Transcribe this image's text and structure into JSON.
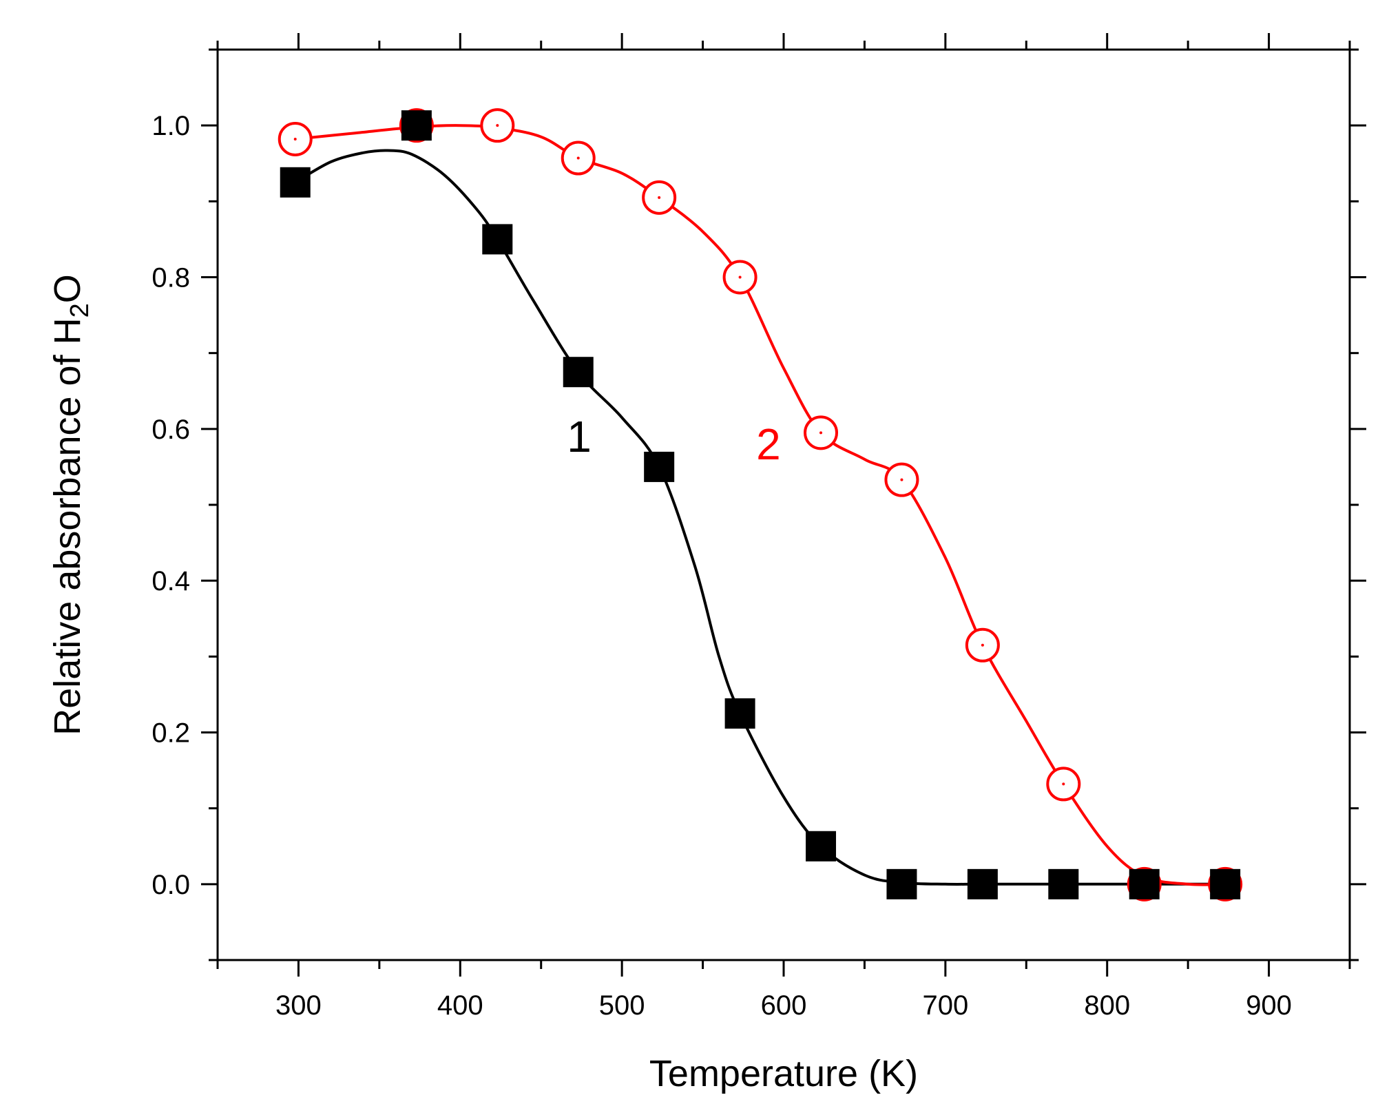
{
  "chart_data": {
    "type": "line",
    "title": "",
    "xlabel": "Temperature (K)",
    "ylabel_main": "Relative absorbance of H",
    "ylabel_sub": "2",
    "ylabel_tail": "O",
    "xlim": [
      250,
      950
    ],
    "ylim": [
      -0.1,
      1.1
    ],
    "xticks": [
      300,
      400,
      500,
      600,
      700,
      800,
      900
    ],
    "xtick_labels": [
      "300",
      "400",
      "500",
      "600",
      "700",
      "800",
      "900"
    ],
    "yticks": [
      0.0,
      0.2,
      0.4,
      0.6,
      0.8,
      1.0
    ],
    "ytick_labels": [
      "0.0",
      "0.2",
      "0.4",
      "0.6",
      "0.8",
      "1.0"
    ],
    "series": [
      {
        "name": "1",
        "color": "#000000",
        "marker": "filled-square",
        "label_pos": [
          466,
          0.57
        ],
        "x": [
          298,
          373,
          423,
          473,
          523,
          573,
          623,
          673,
          723,
          773,
          823,
          873
        ],
        "y": [
          0.925,
          1.0,
          0.85,
          0.675,
          0.55,
          0.225,
          0.05,
          0.0,
          0.0,
          0.0,
          0.0,
          0.0
        ],
        "curve_x": [
          298,
          320,
          340,
          355,
          370,
          390,
          410,
          423,
          445,
          473,
          500,
          523,
          545,
          560,
          573,
          600,
          623,
          650,
          673,
          700,
          723,
          773,
          823,
          873
        ],
        "curve_y": [
          0.925,
          0.952,
          0.964,
          0.967,
          0.962,
          0.935,
          0.89,
          0.85,
          0.77,
          0.675,
          0.615,
          0.55,
          0.42,
          0.3,
          0.225,
          0.115,
          0.05,
          0.012,
          0.002,
          0.0,
          0.0,
          0.0,
          0.0,
          0.0
        ]
      },
      {
        "name": "2",
        "color": "#ff0000",
        "marker": "open-circle",
        "label_pos": [
          583,
          0.56
        ],
        "x": [
          298,
          373,
          423,
          473,
          523,
          573,
          623,
          673,
          723,
          773,
          823,
          873
        ],
        "y": [
          0.982,
          1.0,
          1.0,
          0.957,
          0.905,
          0.8,
          0.595,
          0.533,
          0.315,
          0.132,
          0.0,
          0.0
        ],
        "curve_x": [
          298,
          335,
          373,
          400,
          423,
          450,
          473,
          500,
          523,
          550,
          573,
          600,
          623,
          650,
          673,
          700,
          723,
          750,
          773,
          800,
          823,
          850,
          873
        ],
        "curve_y": [
          0.982,
          0.99,
          0.998,
          1.0,
          0.997,
          0.985,
          0.957,
          0.937,
          0.905,
          0.86,
          0.8,
          0.68,
          0.595,
          0.56,
          0.533,
          0.43,
          0.315,
          0.215,
          0.132,
          0.05,
          0.01,
          0.0,
          0.0
        ]
      }
    ]
  }
}
